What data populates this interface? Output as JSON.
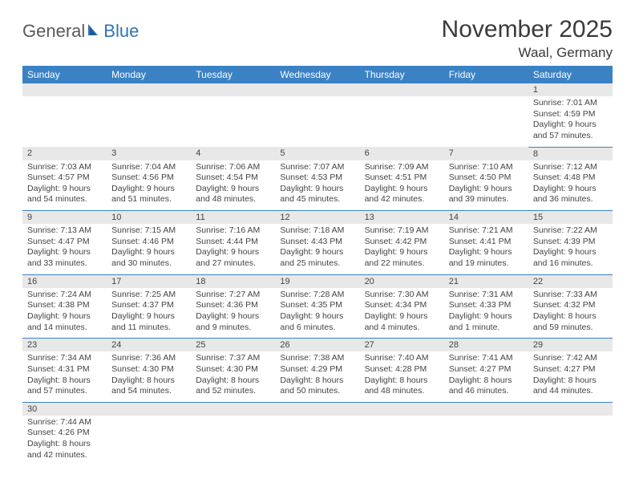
{
  "logo": {
    "part1": "General",
    "part2": "Blue"
  },
  "title": "November 2025",
  "location": "Waal, Germany",
  "colors": {
    "header_bg": "#3b82c4",
    "header_text": "#ffffff",
    "daynum_bg": "#e8e8e8",
    "border": "#3b82c4",
    "logo_gray": "#5a5a5a",
    "logo_blue": "#2e75b6"
  },
  "day_names": [
    "Sunday",
    "Monday",
    "Tuesday",
    "Wednesday",
    "Thursday",
    "Friday",
    "Saturday"
  ],
  "weeks": [
    [
      null,
      null,
      null,
      null,
      null,
      null,
      {
        "n": "1",
        "sr": "Sunrise: 7:01 AM",
        "ss": "Sunset: 4:59 PM",
        "d1": "Daylight: 9 hours",
        "d2": "and 57 minutes."
      }
    ],
    [
      {
        "n": "2",
        "sr": "Sunrise: 7:03 AM",
        "ss": "Sunset: 4:57 PM",
        "d1": "Daylight: 9 hours",
        "d2": "and 54 minutes."
      },
      {
        "n": "3",
        "sr": "Sunrise: 7:04 AM",
        "ss": "Sunset: 4:56 PM",
        "d1": "Daylight: 9 hours",
        "d2": "and 51 minutes."
      },
      {
        "n": "4",
        "sr": "Sunrise: 7:06 AM",
        "ss": "Sunset: 4:54 PM",
        "d1": "Daylight: 9 hours",
        "d2": "and 48 minutes."
      },
      {
        "n": "5",
        "sr": "Sunrise: 7:07 AM",
        "ss": "Sunset: 4:53 PM",
        "d1": "Daylight: 9 hours",
        "d2": "and 45 minutes."
      },
      {
        "n": "6",
        "sr": "Sunrise: 7:09 AM",
        "ss": "Sunset: 4:51 PM",
        "d1": "Daylight: 9 hours",
        "d2": "and 42 minutes."
      },
      {
        "n": "7",
        "sr": "Sunrise: 7:10 AM",
        "ss": "Sunset: 4:50 PM",
        "d1": "Daylight: 9 hours",
        "d2": "and 39 minutes."
      },
      {
        "n": "8",
        "sr": "Sunrise: 7:12 AM",
        "ss": "Sunset: 4:48 PM",
        "d1": "Daylight: 9 hours",
        "d2": "and 36 minutes."
      }
    ],
    [
      {
        "n": "9",
        "sr": "Sunrise: 7:13 AM",
        "ss": "Sunset: 4:47 PM",
        "d1": "Daylight: 9 hours",
        "d2": "and 33 minutes."
      },
      {
        "n": "10",
        "sr": "Sunrise: 7:15 AM",
        "ss": "Sunset: 4:46 PM",
        "d1": "Daylight: 9 hours",
        "d2": "and 30 minutes."
      },
      {
        "n": "11",
        "sr": "Sunrise: 7:16 AM",
        "ss": "Sunset: 4:44 PM",
        "d1": "Daylight: 9 hours",
        "d2": "and 27 minutes."
      },
      {
        "n": "12",
        "sr": "Sunrise: 7:18 AM",
        "ss": "Sunset: 4:43 PM",
        "d1": "Daylight: 9 hours",
        "d2": "and 25 minutes."
      },
      {
        "n": "13",
        "sr": "Sunrise: 7:19 AM",
        "ss": "Sunset: 4:42 PM",
        "d1": "Daylight: 9 hours",
        "d2": "and 22 minutes."
      },
      {
        "n": "14",
        "sr": "Sunrise: 7:21 AM",
        "ss": "Sunset: 4:41 PM",
        "d1": "Daylight: 9 hours",
        "d2": "and 19 minutes."
      },
      {
        "n": "15",
        "sr": "Sunrise: 7:22 AM",
        "ss": "Sunset: 4:39 PM",
        "d1": "Daylight: 9 hours",
        "d2": "and 16 minutes."
      }
    ],
    [
      {
        "n": "16",
        "sr": "Sunrise: 7:24 AM",
        "ss": "Sunset: 4:38 PM",
        "d1": "Daylight: 9 hours",
        "d2": "and 14 minutes."
      },
      {
        "n": "17",
        "sr": "Sunrise: 7:25 AM",
        "ss": "Sunset: 4:37 PM",
        "d1": "Daylight: 9 hours",
        "d2": "and 11 minutes."
      },
      {
        "n": "18",
        "sr": "Sunrise: 7:27 AM",
        "ss": "Sunset: 4:36 PM",
        "d1": "Daylight: 9 hours",
        "d2": "and 9 minutes."
      },
      {
        "n": "19",
        "sr": "Sunrise: 7:28 AM",
        "ss": "Sunset: 4:35 PM",
        "d1": "Daylight: 9 hours",
        "d2": "and 6 minutes."
      },
      {
        "n": "20",
        "sr": "Sunrise: 7:30 AM",
        "ss": "Sunset: 4:34 PM",
        "d1": "Daylight: 9 hours",
        "d2": "and 4 minutes."
      },
      {
        "n": "21",
        "sr": "Sunrise: 7:31 AM",
        "ss": "Sunset: 4:33 PM",
        "d1": "Daylight: 9 hours",
        "d2": "and 1 minute."
      },
      {
        "n": "22",
        "sr": "Sunrise: 7:33 AM",
        "ss": "Sunset: 4:32 PM",
        "d1": "Daylight: 8 hours",
        "d2": "and 59 minutes."
      }
    ],
    [
      {
        "n": "23",
        "sr": "Sunrise: 7:34 AM",
        "ss": "Sunset: 4:31 PM",
        "d1": "Daylight: 8 hours",
        "d2": "and 57 minutes."
      },
      {
        "n": "24",
        "sr": "Sunrise: 7:36 AM",
        "ss": "Sunset: 4:30 PM",
        "d1": "Daylight: 8 hours",
        "d2": "and 54 minutes."
      },
      {
        "n": "25",
        "sr": "Sunrise: 7:37 AM",
        "ss": "Sunset: 4:30 PM",
        "d1": "Daylight: 8 hours",
        "d2": "and 52 minutes."
      },
      {
        "n": "26",
        "sr": "Sunrise: 7:38 AM",
        "ss": "Sunset: 4:29 PM",
        "d1": "Daylight: 8 hours",
        "d2": "and 50 minutes."
      },
      {
        "n": "27",
        "sr": "Sunrise: 7:40 AM",
        "ss": "Sunset: 4:28 PM",
        "d1": "Daylight: 8 hours",
        "d2": "and 48 minutes."
      },
      {
        "n": "28",
        "sr": "Sunrise: 7:41 AM",
        "ss": "Sunset: 4:27 PM",
        "d1": "Daylight: 8 hours",
        "d2": "and 46 minutes."
      },
      {
        "n": "29",
        "sr": "Sunrise: 7:42 AM",
        "ss": "Sunset: 4:27 PM",
        "d1": "Daylight: 8 hours",
        "d2": "and 44 minutes."
      }
    ],
    [
      {
        "n": "30",
        "sr": "Sunrise: 7:44 AM",
        "ss": "Sunset: 4:26 PM",
        "d1": "Daylight: 8 hours",
        "d2": "and 42 minutes."
      },
      null,
      null,
      null,
      null,
      null,
      null
    ]
  ]
}
